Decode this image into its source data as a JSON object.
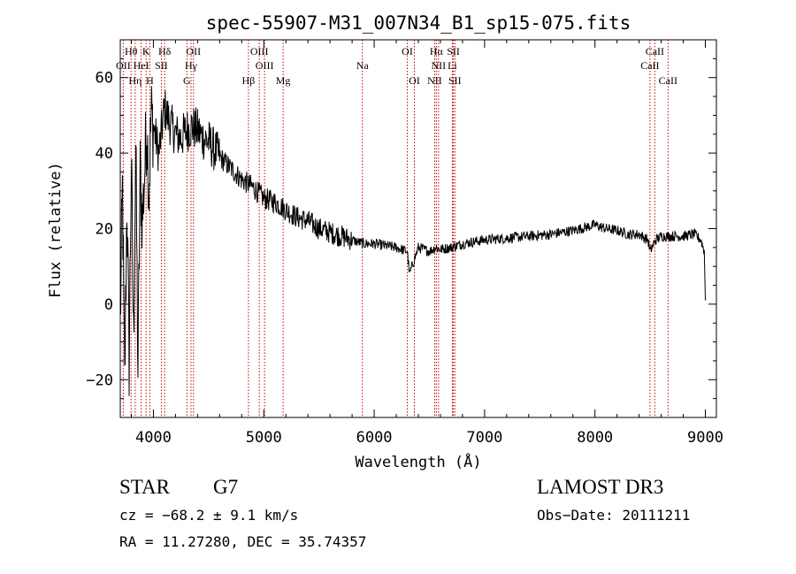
{
  "chart_data": {
    "type": "line",
    "title": "spec-55907-M31_007N34_B1_sp15-075.fits",
    "xlabel": "Wavelength (Å)",
    "ylabel": "Flux (relative)",
    "xlim": [
      3700,
      9100
    ],
    "ylim": [
      -30,
      70
    ],
    "xticks": [
      4000,
      5000,
      6000,
      7000,
      8000,
      9000
    ],
    "yticks": [
      -20,
      0,
      20,
      40,
      60
    ],
    "xtick_labels": [
      "4000",
      "5000",
      "6000",
      "7000",
      "8000",
      "9000"
    ],
    "ytick_labels": [
      "−20",
      "0",
      "20",
      "40",
      "60"
    ],
    "grid": false,
    "series": [
      {
        "name": "flux",
        "x": [
          3700,
          3720,
          3740,
          3760,
          3780,
          3800,
          3820,
          3840,
          3860,
          3880,
          3900,
          3920,
          3940,
          3960,
          3980,
          4000,
          4050,
          4100,
          4150,
          4200,
          4250,
          4300,
          4350,
          4400,
          4450,
          4500,
          4600,
          4700,
          4800,
          4900,
          5000,
          5100,
          5200,
          5300,
          5400,
          5500,
          5600,
          5700,
          5800,
          5900,
          6000,
          6100,
          6200,
          6300,
          6320,
          6400,
          6500,
          6560,
          6600,
          6700,
          6800,
          7000,
          7200,
          7400,
          7600,
          7800,
          8000,
          8100,
          8200,
          8300,
          8400,
          8480,
          8500,
          8550,
          8600,
          8700,
          8800,
          8900,
          8960,
          8990,
          9000
        ],
        "y": [
          -5,
          30,
          -22,
          28,
          -15,
          38,
          -10,
          42,
          -18,
          35,
          22,
          35,
          48,
          30,
          50,
          47,
          40,
          52,
          48,
          45,
          44,
          46,
          47,
          46,
          44,
          43,
          39,
          36,
          33,
          31,
          28,
          27,
          25,
          23,
          22,
          20,
          19,
          18,
          17,
          16,
          16,
          15.5,
          15,
          14,
          8,
          15,
          14,
          15,
          14.5,
          15,
          16,
          17,
          17.5,
          18,
          18.5,
          19.5,
          21,
          20,
          19.5,
          18.5,
          18.5,
          17,
          14,
          17,
          18,
          18,
          18,
          18.5,
          17,
          14,
          1
        ]
      }
    ],
    "line_markers_top": [
      {
        "label": "Hθ",
        "wavelength": 3798
      },
      {
        "label": "K",
        "wavelength": 3934
      },
      {
        "label": "Hδ",
        "wavelength": 4102
      },
      {
        "label": "OII",
        "wavelength": 4363
      },
      {
        "label": "OIII",
        "wavelength": 4959
      },
      {
        "label": "OI",
        "wavelength": 6300
      },
      {
        "label": "Hα",
        "wavelength": 6563
      },
      {
        "label": "SII",
        "wavelength": 6717
      },
      {
        "label": "CaII",
        "wavelength": 8542
      }
    ],
    "line_markers_mid": [
      {
        "label": "OII",
        "wavelength": 3727
      },
      {
        "label": "HeI",
        "wavelength": 3889
      },
      {
        "label": "SII",
        "wavelength": 4072
      },
      {
        "label": "Hγ",
        "wavelength": 4341
      },
      {
        "label": "OIII",
        "wavelength": 5007
      },
      {
        "label": "Na",
        "wavelength": 5893
      },
      {
        "label": "NII",
        "wavelength": 6583
      },
      {
        "label": "Li",
        "wavelength": 6708
      },
      {
        "label": "CaII",
        "wavelength": 8498
      }
    ],
    "line_markers_low": [
      {
        "label": "Hη",
        "wavelength": 3835
      },
      {
        "label": "H",
        "wavelength": 3968
      },
      {
        "label": "G",
        "wavelength": 4304
      },
      {
        "label": "Hβ",
        "wavelength": 4861
      },
      {
        "label": "Mg",
        "wavelength": 5175
      },
      {
        "label": "OI",
        "wavelength": 6364
      },
      {
        "label": "NII",
        "wavelength": 6548
      },
      {
        "label": "SII",
        "wavelength": 6731
      },
      {
        "label": "CaII",
        "wavelength": 8662
      }
    ]
  },
  "info": {
    "object_class": "STAR",
    "subclass": "G7",
    "survey": "LAMOST DR3",
    "cz": "cz = −68.2 ± 9.1 km/s",
    "obs_date": "Obs−Date: 20111211",
    "coords": "RA =  11.27280, DEC =  35.74357"
  },
  "colors": {
    "line_marker": "#cc0000",
    "spectrum": "#000000"
  }
}
